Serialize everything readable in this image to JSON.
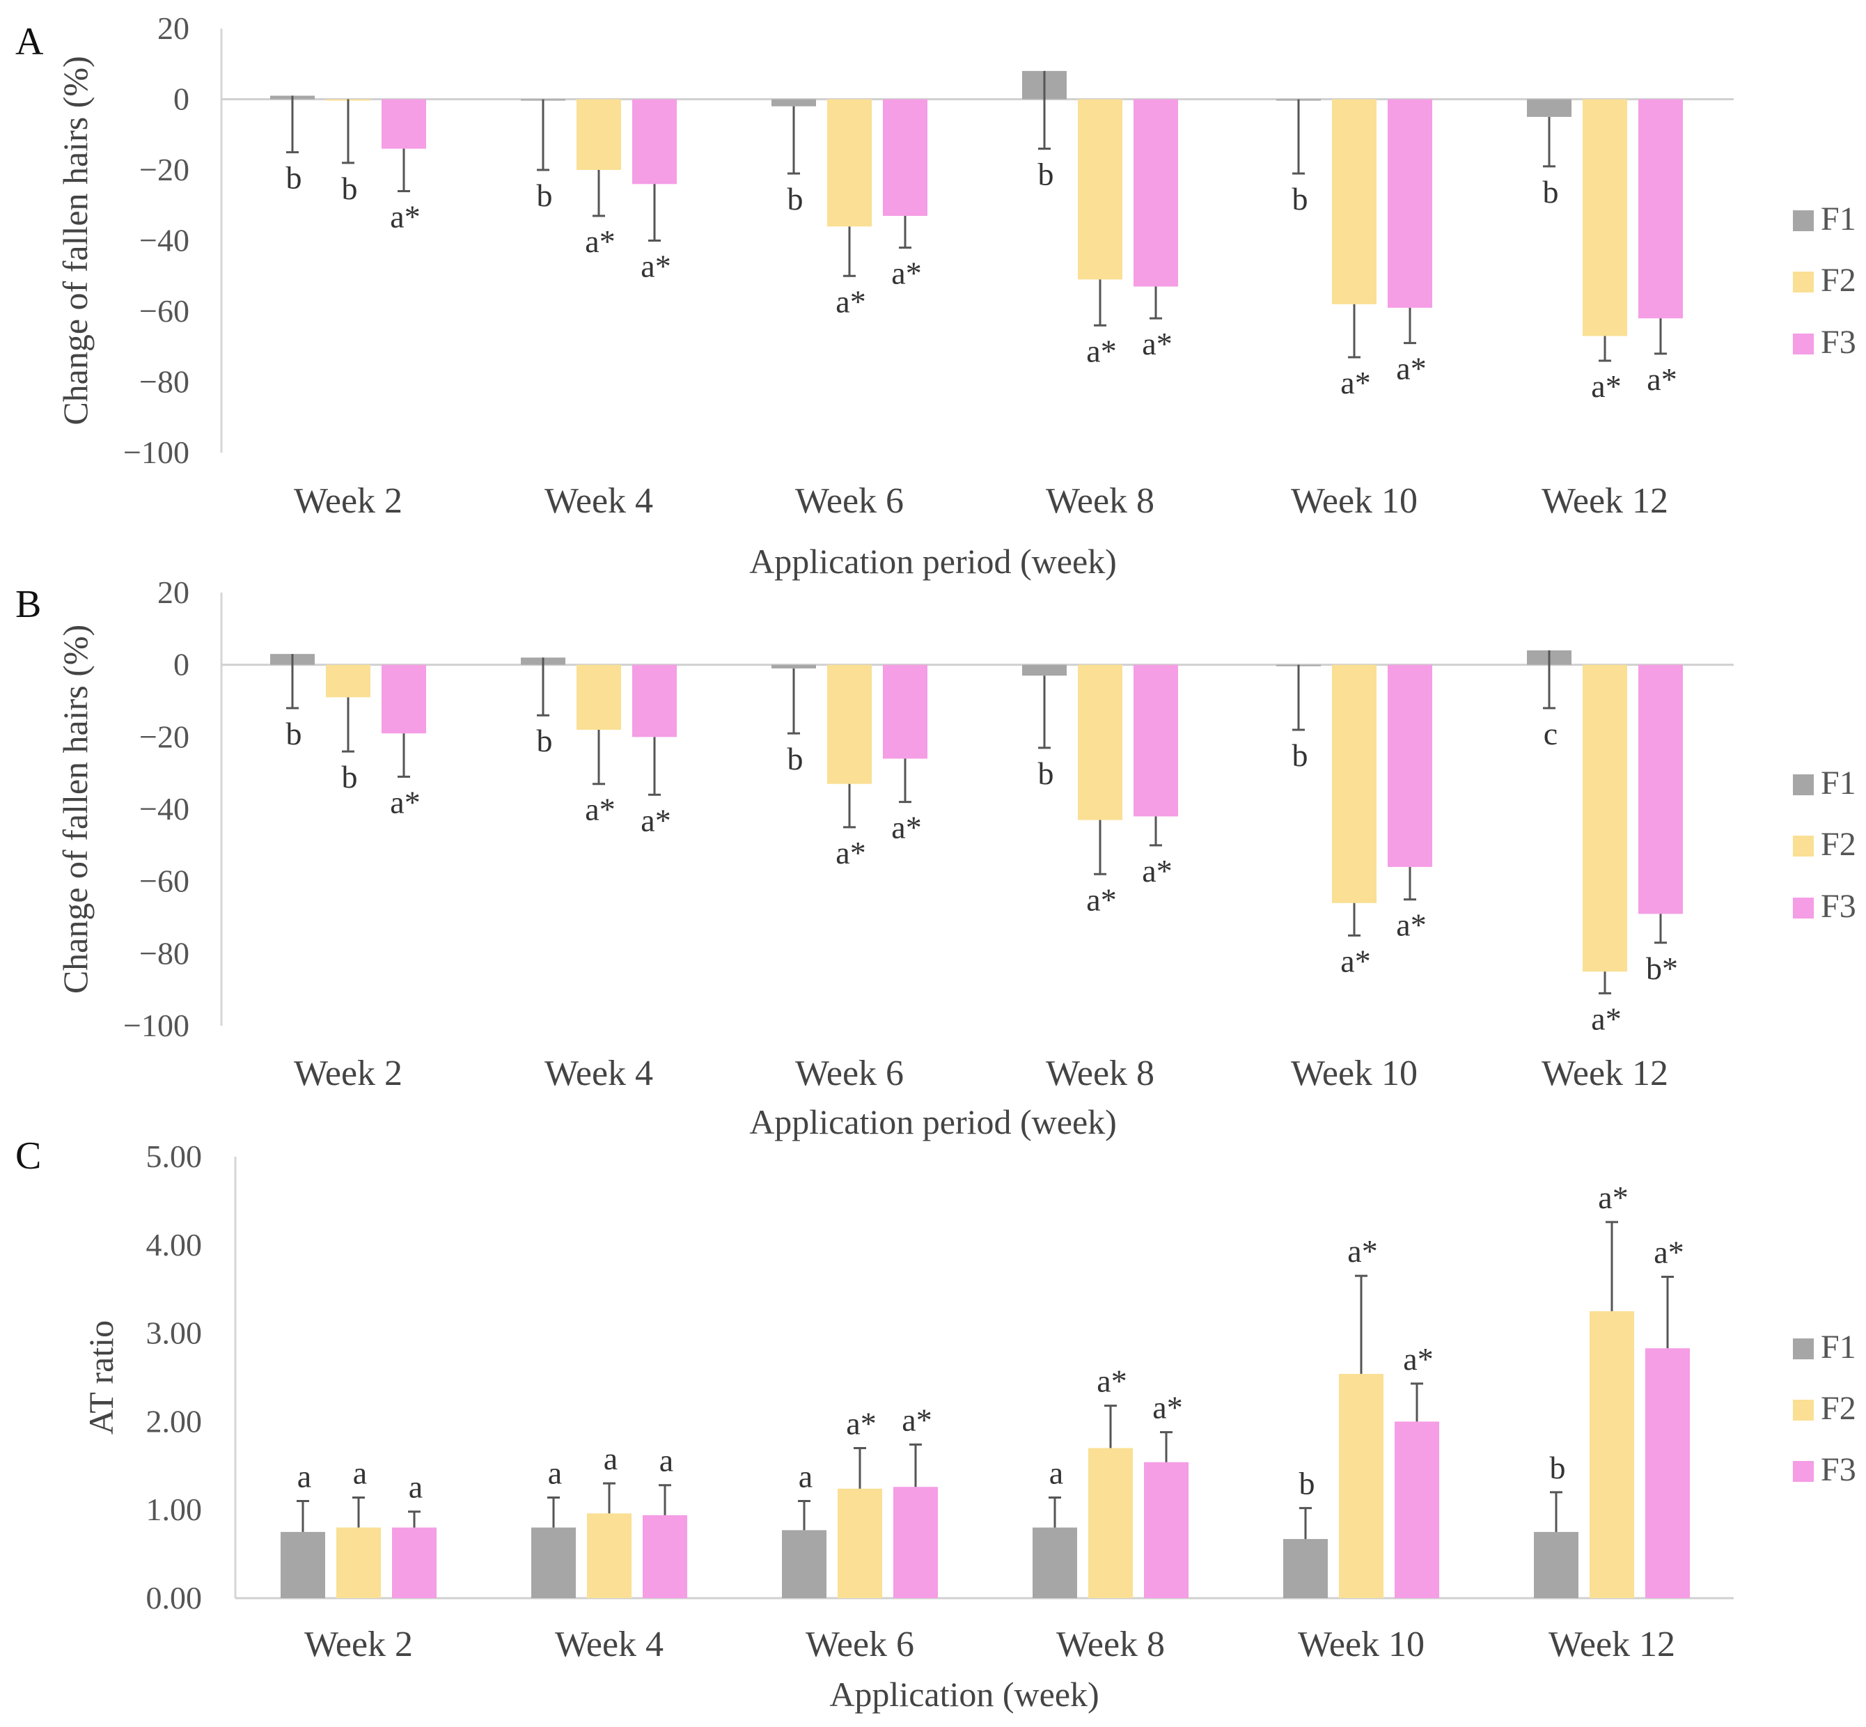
{
  "chart_data": [
    {
      "type": "bar",
      "panel": "A",
      "ylabel": "Change of fallen hairs (%)",
      "xlabel": "Application period (week)",
      "ylim": [
        -100,
        20
      ],
      "yticks": [
        "20",
        "0",
        "−20",
        "−40",
        "−60",
        "−80",
        "−100"
      ],
      "categories": [
        "Week 2",
        "Week 4",
        "Week 6",
        "Week 8",
        "Week 10",
        "Week 12"
      ],
      "series": [
        {
          "name": "F1",
          "color": "#a6a6a6",
          "values": [
            1,
            0,
            -2,
            8,
            0,
            -5
          ],
          "error_end": [
            -15,
            -20,
            -21,
            -14,
            -21,
            -19
          ],
          "labels": [
            "b",
            "b",
            "b",
            "b",
            "b",
            "b"
          ]
        },
        {
          "name": "F2",
          "color": "#fadf94",
          "values": [
            0,
            -20,
            -36,
            -51,
            -58,
            -67
          ],
          "error_end": [
            -18,
            -33,
            -50,
            -64,
            -73,
            -74
          ],
          "labels": [
            "b",
            "a*",
            "a*",
            "a*",
            "a*",
            "a*"
          ]
        },
        {
          "name": "F3",
          "color": "#f59de5",
          "values": [
            -14,
            -24,
            -33,
            -53,
            -59,
            -62
          ],
          "error_end": [
            -26,
            -40,
            -42,
            -62,
            -69,
            -72
          ],
          "labels": [
            "a*",
            "a*",
            "a*",
            "a*",
            "a*",
            "a*"
          ]
        }
      ]
    },
    {
      "type": "bar",
      "panel": "B",
      "ylabel": "Change of fallen hairs (%)",
      "xlabel": "Application period (week)",
      "ylim": [
        -100,
        20
      ],
      "yticks": [
        "20",
        "0",
        "−20",
        "−40",
        "−60",
        "−80",
        "−100"
      ],
      "categories": [
        "Week 2",
        "Week 4",
        "Week 6",
        "Week 8",
        "Week 10",
        "Week 12"
      ],
      "series": [
        {
          "name": "F1",
          "color": "#a6a6a6",
          "values": [
            3,
            2,
            -1,
            -3,
            0,
            4
          ],
          "error_end": [
            -12,
            -14,
            -19,
            -23,
            -18,
            -12
          ],
          "labels": [
            "b",
            "b",
            "b",
            "b",
            "b",
            "c"
          ]
        },
        {
          "name": "F2",
          "color": "#fadf94",
          "values": [
            -9,
            -18,
            -33,
            -43,
            -66,
            -85
          ],
          "error_end": [
            -24,
            -33,
            -45,
            -58,
            -75,
            -91
          ],
          "labels": [
            "b",
            "a*",
            "a*",
            "a*",
            "a*",
            "a*"
          ]
        },
        {
          "name": "F3",
          "color": "#f59de5",
          "values": [
            -19,
            -20,
            -26,
            -42,
            -56,
            -69
          ],
          "error_end": [
            -31,
            -36,
            -38,
            -50,
            -65,
            -77
          ],
          "labels": [
            "a*",
            "a*",
            "a*",
            "a*",
            "a*",
            "b*"
          ]
        }
      ]
    },
    {
      "type": "bar",
      "panel": "C",
      "ylabel": "AT ratio",
      "xlabel": "Application (week)",
      "ylim": [
        0,
        5
      ],
      "yticks": [
        "5.00",
        "4.00",
        "3.00",
        "2.00",
        "1.00",
        "0.00"
      ],
      "categories": [
        "Week 2",
        "Week 4",
        "Week 6",
        "Week 8",
        "Week 10",
        "Week 12"
      ],
      "series": [
        {
          "name": "F1",
          "color": "#a6a6a6",
          "values": [
            0.75,
            0.8,
            0.77,
            0.8,
            0.67,
            0.75
          ],
          "error_end": [
            1.1,
            1.14,
            1.1,
            1.14,
            1.02,
            1.2
          ],
          "labels": [
            "a",
            "a",
            "a",
            "a",
            "b",
            "b"
          ]
        },
        {
          "name": "F2",
          "color": "#fadf94",
          "values": [
            0.8,
            0.96,
            1.24,
            1.7,
            2.54,
            3.25
          ],
          "error_end": [
            1.14,
            1.3,
            1.7,
            2.18,
            3.65,
            4.26
          ],
          "labels": [
            "a",
            "a",
            "a*",
            "a*",
            "a*",
            "a*"
          ]
        },
        {
          "name": "F3",
          "color": "#f59de5",
          "values": [
            0.8,
            0.94,
            1.26,
            1.54,
            2.0,
            2.83
          ],
          "error_end": [
            0.98,
            1.28,
            1.74,
            1.88,
            2.43,
            3.64
          ],
          "labels": [
            "a",
            "a",
            "a*",
            "a*",
            "a*",
            "a*"
          ]
        }
      ]
    }
  ]
}
